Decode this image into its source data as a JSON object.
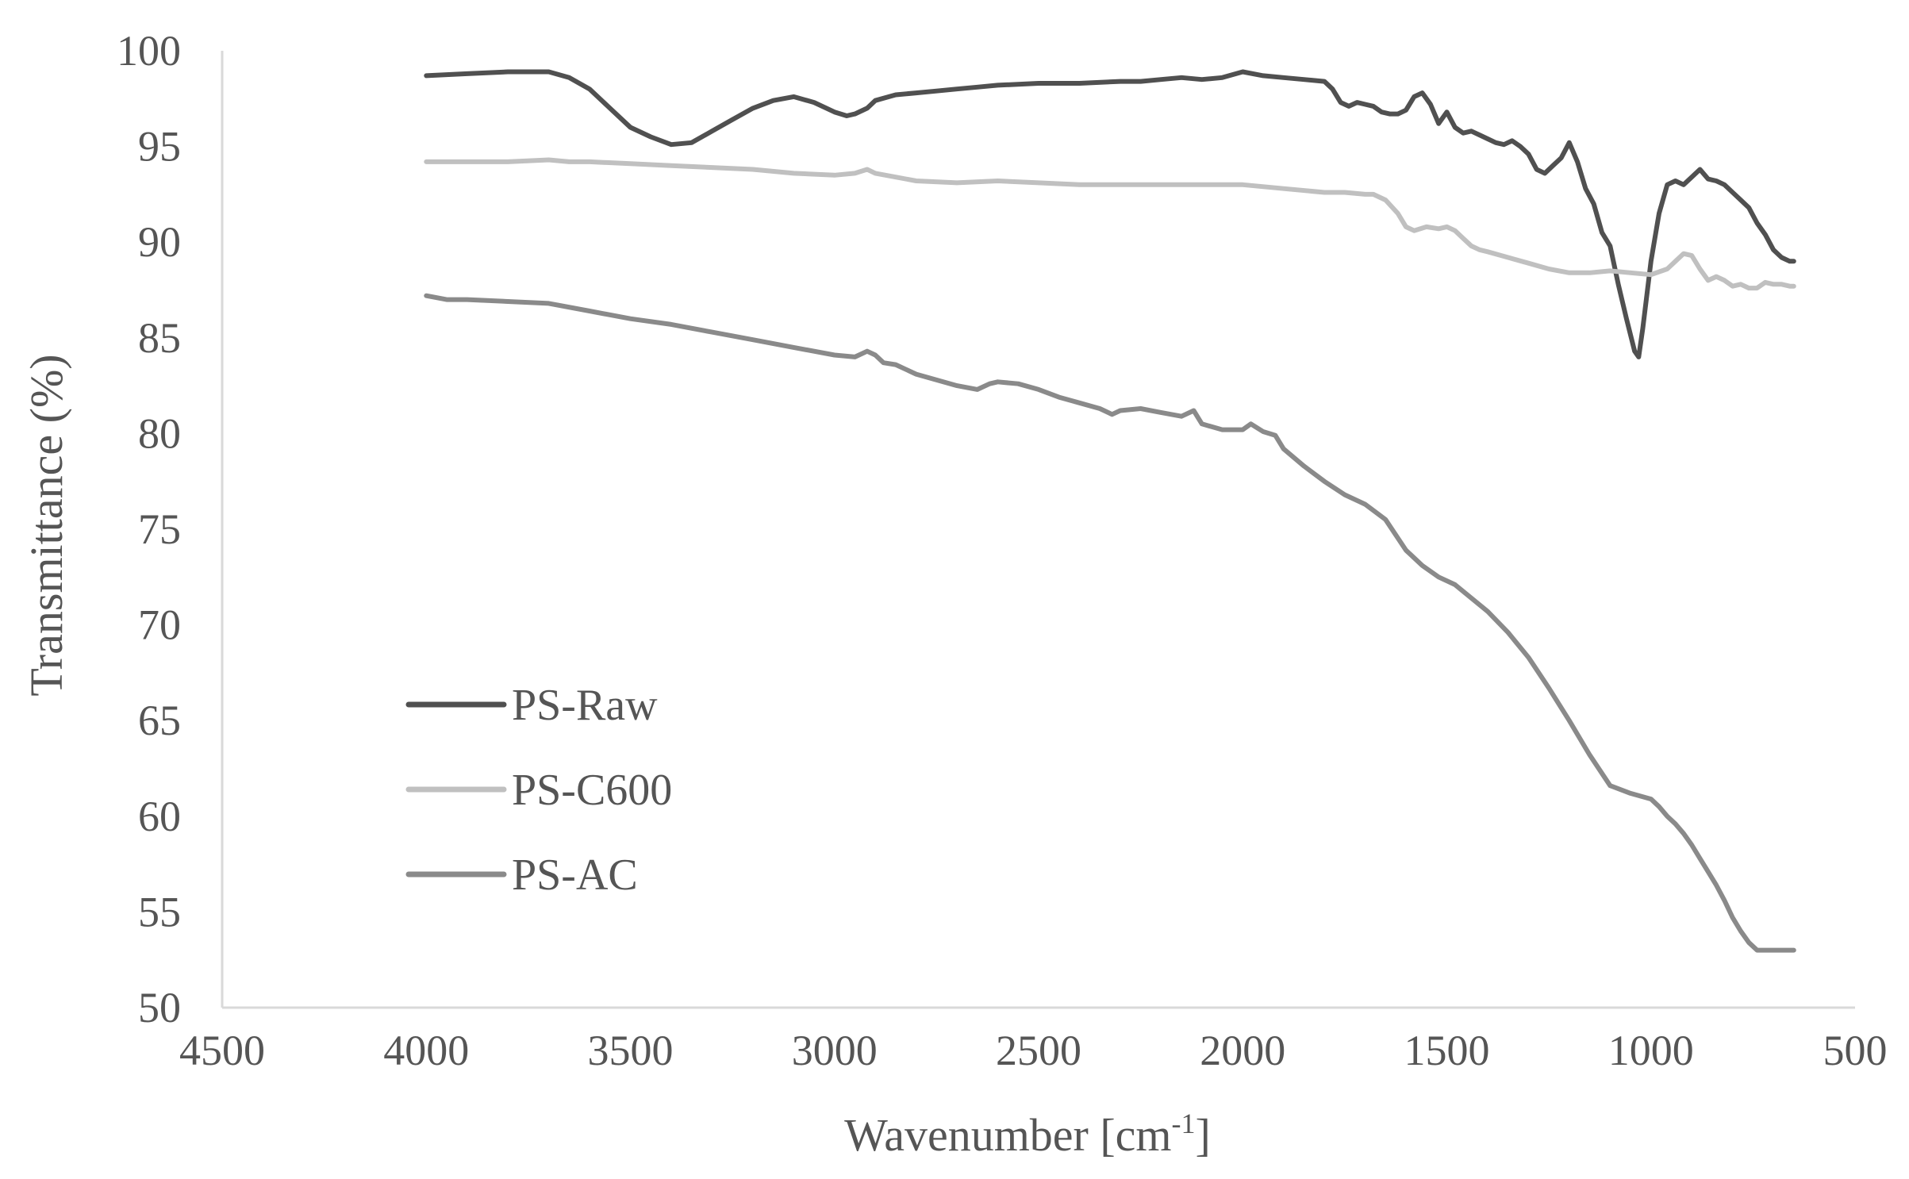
{
  "chart_data": {
    "type": "line",
    "title": "",
    "xlabel": "Wavenumber [cm",
    "xlabel_sup": "-1",
    "xlabel_close": "]",
    "ylabel": "Transmittance (%)",
    "xlim": [
      4500,
      500
    ],
    "ylim": [
      50,
      100
    ],
    "x_reversed": true,
    "x_ticks": [
      4500,
      4000,
      3500,
      3000,
      2500,
      2000,
      1500,
      1000,
      500
    ],
    "y_ticks": [
      50,
      55,
      60,
      65,
      70,
      75,
      80,
      85,
      90,
      95,
      100
    ],
    "grid": false,
    "legend_position": "bottom-left (inside plot)",
    "series": [
      {
        "name": "PS-Raw",
        "color": "#505050",
        "x": [
          4000,
          3900,
          3800,
          3700,
          3650,
          3600,
          3550,
          3500,
          3450,
          3400,
          3350,
          3300,
          3250,
          3200,
          3150,
          3100,
          3050,
          3000,
          2970,
          2950,
          2920,
          2900,
          2850,
          2800,
          2750,
          2700,
          2650,
          2600,
          2500,
          2400,
          2300,
          2250,
          2200,
          2150,
          2100,
          2050,
          2000,
          1950,
          1900,
          1850,
          1800,
          1780,
          1760,
          1740,
          1720,
          1700,
          1680,
          1660,
          1640,
          1620,
          1600,
          1580,
          1560,
          1540,
          1520,
          1500,
          1480,
          1460,
          1440,
          1420,
          1400,
          1380,
          1360,
          1340,
          1320,
          1300,
          1280,
          1260,
          1240,
          1220,
          1200,
          1180,
          1160,
          1140,
          1120,
          1100,
          1080,
          1060,
          1040,
          1030,
          1020,
          1000,
          980,
          960,
          940,
          920,
          900,
          880,
          860,
          840,
          820,
          800,
          780,
          760,
          740,
          720,
          700,
          680,
          660,
          650
        ],
        "values": [
          98.7,
          98.8,
          98.9,
          98.9,
          98.6,
          98.0,
          97.0,
          96.0,
          95.5,
          95.1,
          95.2,
          95.8,
          96.4,
          97.0,
          97.4,
          97.6,
          97.3,
          96.8,
          96.6,
          96.7,
          97.0,
          97.4,
          97.7,
          97.8,
          97.9,
          98.0,
          98.1,
          98.2,
          98.3,
          98.3,
          98.4,
          98.4,
          98.5,
          98.6,
          98.5,
          98.6,
          98.9,
          98.7,
          98.6,
          98.5,
          98.4,
          98.0,
          97.3,
          97.1,
          97.3,
          97.2,
          97.1,
          96.8,
          96.7,
          96.7,
          96.9,
          97.6,
          97.8,
          97.2,
          96.2,
          96.8,
          96.0,
          95.7,
          95.8,
          95.6,
          95.4,
          95.2,
          95.1,
          95.3,
          95.0,
          94.6,
          93.8,
          93.6,
          94.0,
          94.4,
          95.2,
          94.2,
          92.8,
          92.0,
          90.5,
          89.8,
          87.8,
          86.0,
          84.3,
          84.0,
          85.5,
          89.0,
          91.5,
          93.0,
          93.2,
          93.0,
          93.4,
          93.8,
          93.3,
          93.2,
          93.0,
          92.6,
          92.2,
          91.8,
          91.0,
          90.4,
          89.6,
          89.2,
          89.0,
          89.0
        ]
      },
      {
        "name": "PS-C600",
        "color": "#c0c0c0",
        "x": [
          4000,
          3900,
          3800,
          3700,
          3650,
          3600,
          3500,
          3400,
          3300,
          3200,
          3100,
          3000,
          2950,
          2920,
          2900,
          2850,
          2800,
          2700,
          2600,
          2500,
          2400,
          2300,
          2200,
          2100,
          2000,
          1900,
          1800,
          1750,
          1700,
          1680,
          1650,
          1620,
          1600,
          1580,
          1550,
          1520,
          1500,
          1480,
          1460,
          1440,
          1420,
          1400,
          1350,
          1300,
          1250,
          1200,
          1150,
          1100,
          1050,
          1000,
          960,
          940,
          920,
          900,
          880,
          860,
          840,
          820,
          800,
          780,
          760,
          740,
          720,
          700,
          680,
          660,
          650
        ],
        "values": [
          94.2,
          94.2,
          94.2,
          94.3,
          94.2,
          94.2,
          94.1,
          94.0,
          93.9,
          93.8,
          93.6,
          93.5,
          93.6,
          93.8,
          93.6,
          93.4,
          93.2,
          93.1,
          93.2,
          93.1,
          93.0,
          93.0,
          93.0,
          93.0,
          93.0,
          92.8,
          92.6,
          92.6,
          92.5,
          92.5,
          92.2,
          91.5,
          90.8,
          90.6,
          90.8,
          90.7,
          90.8,
          90.6,
          90.2,
          89.8,
          89.6,
          89.5,
          89.2,
          88.9,
          88.6,
          88.4,
          88.4,
          88.5,
          88.4,
          88.3,
          88.6,
          89.0,
          89.4,
          89.3,
          88.6,
          88.0,
          88.2,
          88.0,
          87.7,
          87.8,
          87.6,
          87.6,
          87.9,
          87.8,
          87.8,
          87.7,
          87.7
        ]
      },
      {
        "name": "PS-AC",
        "color": "#8a8a8a",
        "x": [
          4000,
          3950,
          3900,
          3800,
          3700,
          3600,
          3500,
          3400,
          3300,
          3200,
          3100,
          3000,
          2950,
          2920,
          2900,
          2880,
          2850,
          2800,
          2750,
          2700,
          2650,
          2620,
          2600,
          2550,
          2500,
          2450,
          2400,
          2350,
          2320,
          2300,
          2250,
          2200,
          2150,
          2120,
          2100,
          2050,
          2000,
          1980,
          1950,
          1920,
          1900,
          1850,
          1800,
          1750,
          1700,
          1650,
          1600,
          1560,
          1520,
          1480,
          1440,
          1400,
          1350,
          1300,
          1250,
          1200,
          1150,
          1100,
          1050,
          1000,
          980,
          960,
          940,
          920,
          900,
          880,
          860,
          840,
          820,
          800,
          780,
          760,
          740,
          720,
          700,
          680,
          660,
          650
        ],
        "values": [
          87.2,
          87.0,
          87.0,
          86.9,
          86.8,
          86.4,
          86.0,
          85.7,
          85.3,
          84.9,
          84.5,
          84.1,
          84.0,
          84.3,
          84.1,
          83.7,
          83.6,
          83.1,
          82.8,
          82.5,
          82.3,
          82.6,
          82.7,
          82.6,
          82.3,
          81.9,
          81.6,
          81.3,
          81.0,
          81.2,
          81.3,
          81.1,
          80.9,
          81.2,
          80.5,
          80.2,
          80.2,
          80.5,
          80.1,
          79.9,
          79.2,
          78.3,
          77.5,
          76.8,
          76.3,
          75.5,
          73.9,
          73.1,
          72.5,
          72.1,
          71.4,
          70.7,
          69.6,
          68.3,
          66.7,
          65.0,
          63.2,
          61.6,
          61.2,
          60.9,
          60.5,
          60.0,
          59.6,
          59.1,
          58.5,
          57.8,
          57.1,
          56.4,
          55.6,
          54.7,
          54.0,
          53.4,
          53.0,
          53.0,
          53.0,
          53.0,
          53.0,
          53.0
        ]
      }
    ]
  }
}
